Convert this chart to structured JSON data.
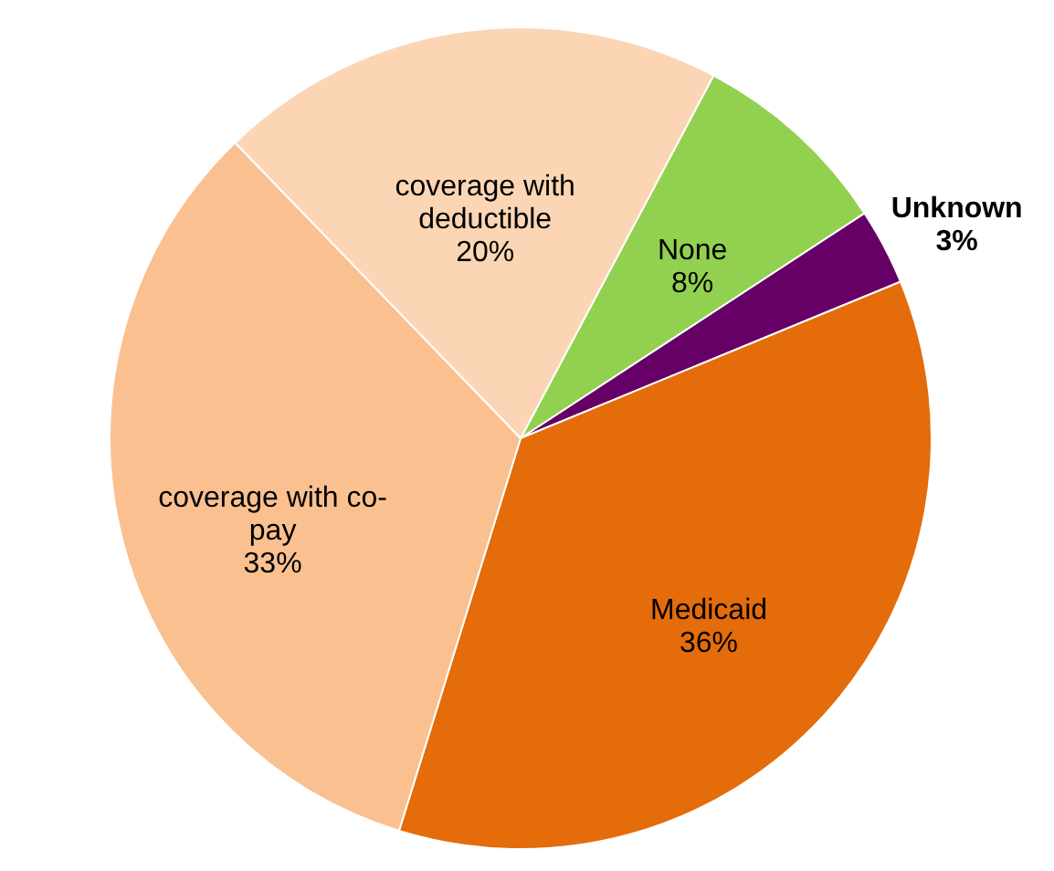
{
  "chart_data": {
    "type": "pie",
    "categories": [
      "None",
      "Unknown",
      "Medicaid",
      "coverage with co-pay",
      "coverage with deductible"
    ],
    "values": [
      8,
      3,
      36,
      33,
      20
    ],
    "value_labels": [
      "8%",
      "3%",
      "36%",
      "33%",
      "20%"
    ],
    "colors": [
      "#92d050",
      "#660066",
      "#e46c0a",
      "#fac090",
      "#fcd5b5"
    ],
    "legend": false
  }
}
